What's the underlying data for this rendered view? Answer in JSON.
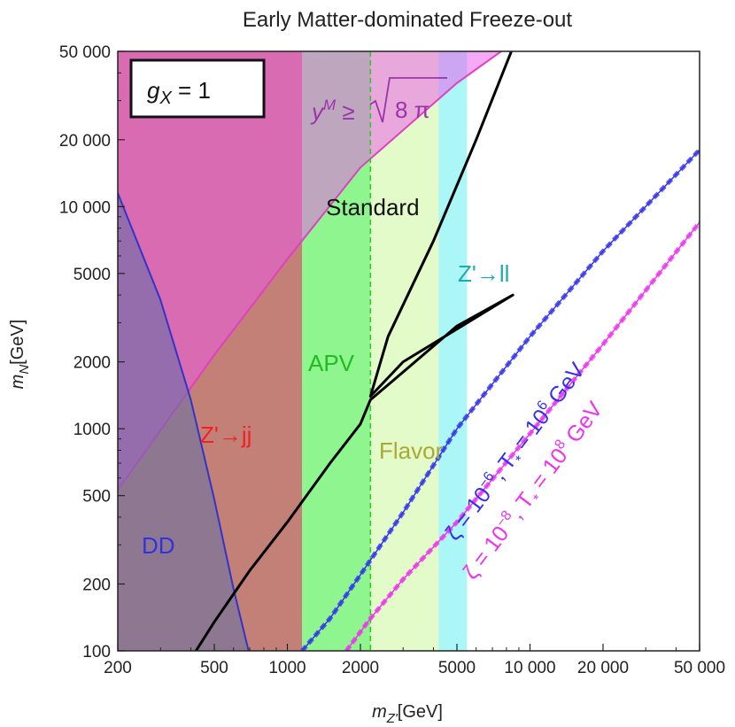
{
  "chart_data": {
    "type": "area",
    "title": "Early Matter-dominated Freeze-out",
    "xlabel_main": "m",
    "xlabel_sub": "Z'",
    "xlabel_unit": "[GeV]",
    "ylabel_main": "m",
    "ylabel_sub": "N",
    "ylabel_unit": "[GeV]",
    "x_scale": "log",
    "y_scale": "log",
    "xlim": [
      200,
      50000
    ],
    "ylim": [
      100,
      50000
    ],
    "x_ticks": [
      200,
      500,
      1000,
      2000,
      5000,
      10000,
      20000,
      50000
    ],
    "x_tick_labels": [
      "200",
      "500",
      "1000",
      "2000",
      "5000",
      "10 000",
      "20 000",
      "50 000"
    ],
    "y_ticks": [
      100,
      200,
      500,
      1000,
      2000,
      5000,
      10000,
      20000,
      50000
    ],
    "y_tick_labels": [
      "100",
      "200",
      "500",
      "1000",
      "2000",
      "5000",
      "10 000",
      "20 000",
      "50 000"
    ],
    "coupling_box": {
      "symbol": "g",
      "sub": "X",
      "text": "= 1"
    },
    "regions": [
      {
        "name": "DD",
        "label": "DD",
        "color": "#7a3f9a",
        "boundary_x": [
          200,
          300,
          400,
          500,
          600,
          700
        ],
        "boundary_y": [
          11500,
          3800,
          1350,
          480,
          190,
          95
        ]
      },
      {
        "name": "Z'→jj",
        "label": "Z'→jj",
        "color": "#b86a5f",
        "xlim": [
          200,
          1150
        ]
      },
      {
        "name": "APV",
        "label": "APV",
        "color": "#33ee33",
        "xlim": [
          1150,
          2200
        ]
      },
      {
        "name": "Flavor",
        "label": "Flavor",
        "color": "#ccf59c",
        "xlim": [
          2200,
          4200
        ]
      },
      {
        "name": "Z'→ll",
        "label": "Z'→ll",
        "color": "#66eeee",
        "xlim": [
          4200,
          5500
        ]
      },
      {
        "name": "perturbativity",
        "label_main": "y",
        "label_sup": "M",
        "label_rest": "≥",
        "label_root": "8 π",
        "color": "#ee55ee",
        "boundary_x": [
          200,
          500,
          1000,
          2000,
          5000,
          8000
        ],
        "boundary_y": [
          530,
          2150,
          5800,
          15000,
          36000,
          52000
        ]
      }
    ],
    "series": [
      {
        "name": "Standard",
        "color": "#000000",
        "x": [
          420,
          500,
          700,
          1000,
          1500,
          2000,
          2200,
          3000,
          5000,
          8500,
          3000,
          2200,
          2600,
          4000,
          6000,
          8500
        ],
        "y": [
          100,
          135,
          230,
          380,
          700,
          1050,
          1350,
          1800,
          2900,
          4000,
          2000,
          1400,
          2600,
          7000,
          20000,
          52000
        ]
      },
      {
        "name": "zeta6",
        "label_a": "ζ = 10",
        "label_exp_a": "−6",
        "label_b": ", T",
        "label_b_sub": "*",
        "label_c": " = 10",
        "label_exp_c": "6",
        "label_d": " GeV",
        "color": "#3333ee",
        "x": [
          1150,
          1500,
          2000,
          3000,
          5000,
          10000,
          20000,
          50000
        ],
        "y": [
          100,
          140,
          220,
          420,
          1000,
          2600,
          6300,
          18000
        ]
      },
      {
        "name": "zeta8",
        "label_a": "ζ = 10",
        "label_exp_a": "−8",
        "label_b": ", T",
        "label_b_sub": "*",
        "label_c": " = 10",
        "label_exp_c": "8",
        "label_d": " GeV",
        "color": "#ee33ee",
        "x": [
          1750,
          2200,
          3000,
          5000,
          10000,
          20000,
          50000
        ],
        "y": [
          100,
          140,
          210,
          380,
          950,
          2400,
          8500
        ]
      }
    ],
    "text_labels": {
      "standard": "Standard",
      "apv": "APV",
      "flavor": "Flavor",
      "zll": "Z'→ll",
      "zjj": "Z'→jj",
      "dd": "DD"
    },
    "colors": {
      "dd_text": "#3333dd",
      "zjj_text": "#ee2222",
      "apv_text": "#22bb22",
      "flavor_text": "#aaaa33",
      "zll_text": "#22aaaa",
      "ym_text": "#9933aa",
      "standard_text": "#111111"
    },
    "grid": false,
    "legend": "none"
  }
}
